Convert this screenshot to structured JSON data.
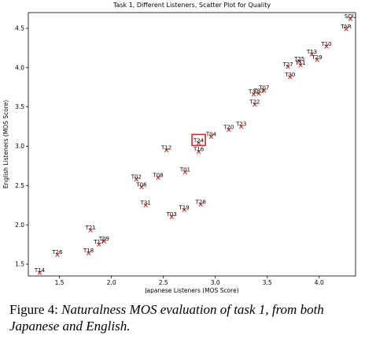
{
  "chart_data": {
    "type": "scatter",
    "title": "Task 1, Different Listeners, Scatter Plot for Quality",
    "xlabel": "Japanese Listeners (MOS Score)",
    "ylabel": "English Listeners (MOS Score)",
    "xlim": [
      1.2,
      4.35
    ],
    "ylim": [
      1.35,
      4.7
    ],
    "xticks": [
      1.5,
      2.0,
      2.5,
      3.0,
      3.5,
      4.0
    ],
    "xtick_labels": [
      "1.5",
      "2.0",
      "2.5",
      "3.0",
      "3.5",
      "4.0"
    ],
    "yticks": [
      1.5,
      2.0,
      2.5,
      3.0,
      3.5,
      4.0,
      4.5
    ],
    "ytick_labels": [
      "1.5",
      "2.0",
      "2.5",
      "3.0",
      "3.5",
      "4.0",
      "4.5"
    ],
    "grid": false,
    "marker_color": "#d62728",
    "highlight_color": "#d62728",
    "highlighted_point": "T24",
    "points": [
      {
        "label": "SOU",
        "x": 4.3,
        "y": 4.62
      },
      {
        "label": "TAR",
        "x": 4.26,
        "y": 4.49
      },
      {
        "label": "T10",
        "x": 4.07,
        "y": 4.27
      },
      {
        "label": "T13",
        "x": 3.93,
        "y": 4.17
      },
      {
        "label": "T29",
        "x": 3.98,
        "y": 4.1
      },
      {
        "label": "T25",
        "x": 3.81,
        "y": 4.08
      },
      {
        "label": "T11",
        "x": 3.82,
        "y": 4.03
      },
      {
        "label": "T27",
        "x": 3.7,
        "y": 4.01
      },
      {
        "label": "T30",
        "x": 3.72,
        "y": 3.88
      },
      {
        "label": "T07",
        "x": 3.47,
        "y": 3.71
      },
      {
        "label": "T33",
        "x": 3.42,
        "y": 3.67
      },
      {
        "label": "T32",
        "x": 3.37,
        "y": 3.66
      },
      {
        "label": "T22",
        "x": 3.38,
        "y": 3.53
      },
      {
        "label": "T23",
        "x": 3.25,
        "y": 3.25
      },
      {
        "label": "T20",
        "x": 3.13,
        "y": 3.21
      },
      {
        "label": "T04",
        "x": 2.96,
        "y": 3.12
      },
      {
        "label": "T24",
        "x": 2.84,
        "y": 3.04
      },
      {
        "label": "T16",
        "x": 2.84,
        "y": 2.93
      },
      {
        "label": "T12",
        "x": 2.53,
        "y": 2.95
      },
      {
        "label": "T01",
        "x": 2.71,
        "y": 2.67
      },
      {
        "label": "T08",
        "x": 2.45,
        "y": 2.6
      },
      {
        "label": "T02",
        "x": 2.24,
        "y": 2.58
      },
      {
        "label": "T06",
        "x": 2.29,
        "y": 2.48
      },
      {
        "label": "T28",
        "x": 2.86,
        "y": 2.26
      },
      {
        "label": "T31",
        "x": 2.33,
        "y": 2.25
      },
      {
        "label": "T19",
        "x": 2.7,
        "y": 2.19
      },
      {
        "label": "T03",
        "x": 2.58,
        "y": 2.1
      },
      {
        "label": "T21",
        "x": 1.8,
        "y": 1.93
      },
      {
        "label": "T09",
        "x": 1.93,
        "y": 1.79
      },
      {
        "label": "T17",
        "x": 1.88,
        "y": 1.75
      },
      {
        "label": "T18",
        "x": 1.78,
        "y": 1.64
      },
      {
        "label": "T26",
        "x": 1.48,
        "y": 1.62
      },
      {
        "label": "T14",
        "x": 1.31,
        "y": 1.39
      }
    ]
  },
  "caption": {
    "label": "Figure 4:",
    "text": "Naturalness MOS evaluation of task 1, from both Japanese and English."
  }
}
